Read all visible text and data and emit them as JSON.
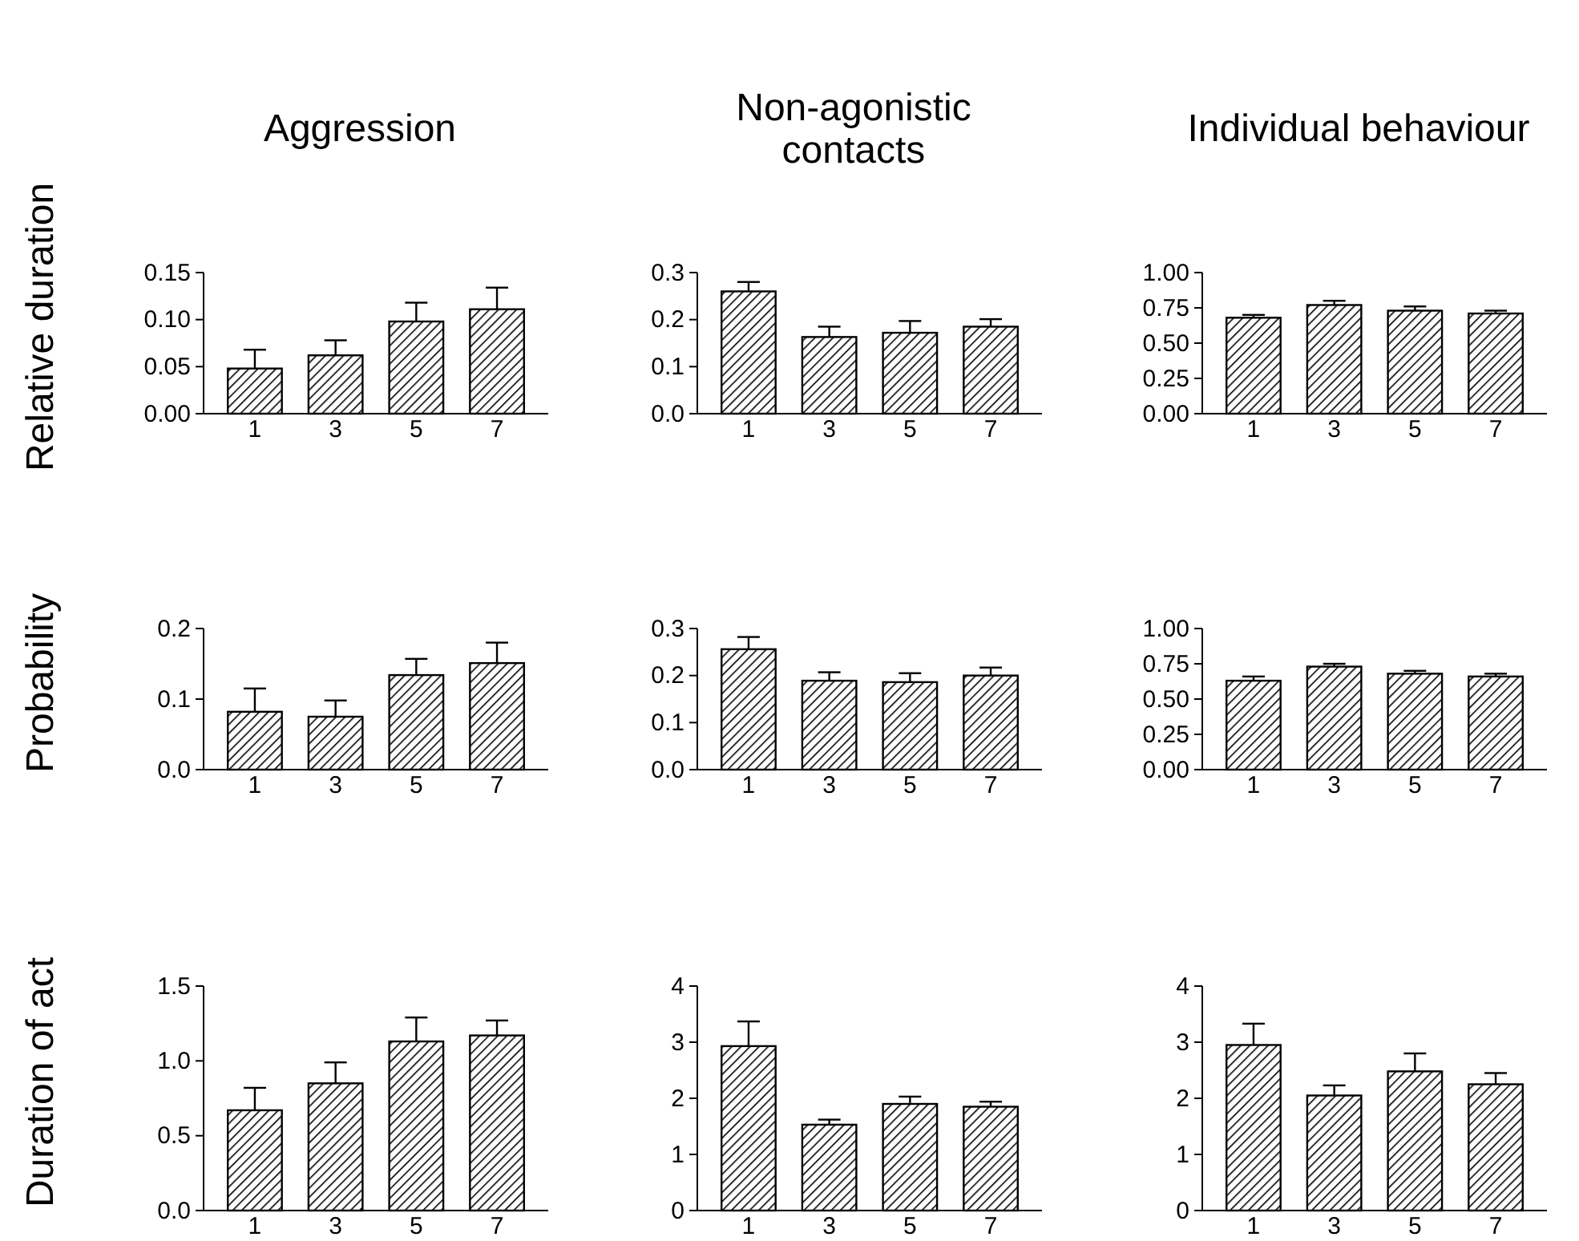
{
  "chart_data": [
    {
      "type": "bar",
      "title": "Aggression",
      "ylabel": "Relative duration",
      "categories": [
        "1",
        "3",
        "5",
        "7"
      ],
      "values": [
        0.048,
        0.062,
        0.098,
        0.111
      ],
      "errors": [
        [
          0.048,
          0.068
        ],
        [
          0.062,
          0.078
        ],
        [
          0.098,
          0.118
        ],
        [
          0.111,
          0.134
        ]
      ],
      "color": "#000000",
      "ylim": [
        0,
        0.15
      ],
      "yticks": [
        {
          "value": 0,
          "label": "0.00"
        },
        0.05,
        {
          "value": 0.1,
          "label": "0.10"
        },
        0.15
      ]
    },
    {
      "type": "bar",
      "title": "Non-agonistic contacts",
      "categories": [
        "1",
        "3",
        "5",
        "7"
      ],
      "values": [
        0.26,
        0.163,
        0.172,
        0.185
      ],
      "errors": [
        [
          0.26,
          0.28
        ],
        [
          0.163,
          0.185
        ],
        [
          0.172,
          0.197
        ],
        [
          0.185,
          0.201
        ]
      ],
      "color": "#000000",
      "ylim": [
        0,
        0.3
      ],
      "yticks": [
        {
          "value": 0,
          "label": "0.0"
        },
        0.1,
        0.2,
        0.3
      ]
    },
    {
      "type": "bar",
      "title": "Individual behaviour",
      "categories": [
        "1",
        "3",
        "5",
        "7"
      ],
      "values": [
        0.68,
        0.77,
        0.73,
        0.71
      ],
      "errors": [
        [
          0.68,
          0.7
        ],
        [
          0.77,
          0.8
        ],
        [
          0.73,
          0.76
        ],
        [
          0.71,
          0.73
        ]
      ],
      "color": "#000000",
      "ylim": [
        0,
        1
      ],
      "yticks": [
        {
          "value": 0,
          "label": "0.00"
        },
        0.25,
        {
          "value": 0.5,
          "label": "0.50"
        },
        0.75,
        {
          "value": 1,
          "label": "1.00"
        }
      ]
    },
    {
      "type": "bar",
      "ylabel": "Probability",
      "categories": [
        "1",
        "3",
        "5",
        "7"
      ],
      "values": [
        0.082,
        0.075,
        0.134,
        0.151
      ],
      "errors": [
        [
          0.082,
          0.115
        ],
        [
          0.075,
          0.098
        ],
        [
          0.134,
          0.157
        ],
        [
          0.151,
          0.18
        ]
      ],
      "color": "#000000",
      "ylim": [
        0,
        0.2
      ],
      "yticks": [
        {
          "value": 0,
          "label": "0.0"
        },
        0.1,
        0.2
      ]
    },
    {
      "type": "bar",
      "categories": [
        "1",
        "3",
        "5",
        "7"
      ],
      "values": [
        0.256,
        0.189,
        0.186,
        0.2
      ],
      "errors": [
        [
          0.256,
          0.282
        ],
        [
          0.189,
          0.207
        ],
        [
          0.186,
          0.205
        ],
        [
          0.2,
          0.217
        ]
      ],
      "color": "#000000",
      "ylim": [
        0,
        0.3
      ],
      "yticks": [
        {
          "value": 0,
          "label": "0.0"
        },
        0.1,
        0.2,
        0.3
      ]
    },
    {
      "type": "bar",
      "categories": [
        "1",
        "3",
        "5",
        "7"
      ],
      "values": [
        0.63,
        0.73,
        0.68,
        0.66
      ],
      "errors": [
        [
          0.63,
          0.66
        ],
        [
          0.73,
          0.75
        ],
        [
          0.68,
          0.7
        ],
        [
          0.66,
          0.68
        ]
      ],
      "color": "#000000",
      "ylim": [
        0,
        1
      ],
      "yticks": [
        {
          "value": 0,
          "label": "0.00"
        },
        0.25,
        {
          "value": 0.5,
          "label": "0.50"
        },
        0.75,
        {
          "value": 1,
          "label": "1.00"
        }
      ]
    },
    {
      "type": "bar",
      "ylabel": "Duration of act",
      "categories": [
        "1",
        "3",
        "5",
        "7"
      ],
      "values": [
        0.67,
        0.85,
        1.13,
        1.17
      ],
      "errors": [
        [
          0.67,
          0.82
        ],
        [
          0.85,
          0.99
        ],
        [
          1.13,
          1.29
        ],
        [
          1.17,
          1.27
        ]
      ],
      "color": "#000000",
      "ylim": [
        0,
        1.5
      ],
      "yticks": [
        {
          "value": 0,
          "label": "0.0"
        },
        0.5,
        {
          "value": 1,
          "label": "1.0"
        },
        1.5
      ]
    },
    {
      "type": "bar",
      "categories": [
        "1",
        "3",
        "5",
        "7"
      ],
      "values": [
        2.93,
        1.53,
        1.9,
        1.85
      ],
      "errors": [
        [
          2.93,
          3.37
        ],
        [
          1.53,
          1.62
        ],
        [
          1.9,
          2.03
        ],
        [
          1.85,
          1.94
        ]
      ],
      "color": "#000000",
      "ylim": [
        0,
        4
      ],
      "yticks": [
        0,
        1,
        2,
        3,
        4
      ]
    },
    {
      "type": "bar",
      "categories": [
        "1",
        "3",
        "5",
        "7"
      ],
      "values": [
        2.95,
        2.05,
        2.48,
        2.25
      ],
      "errors": [
        [
          2.95,
          3.33
        ],
        [
          2.05,
          2.23
        ],
        [
          2.48,
          2.8
        ],
        [
          2.25,
          2.45
        ]
      ],
      "color": "#000000",
      "ylim": [
        0,
        4
      ],
      "yticks": [
        0,
        1,
        2,
        3,
        4
      ]
    }
  ]
}
